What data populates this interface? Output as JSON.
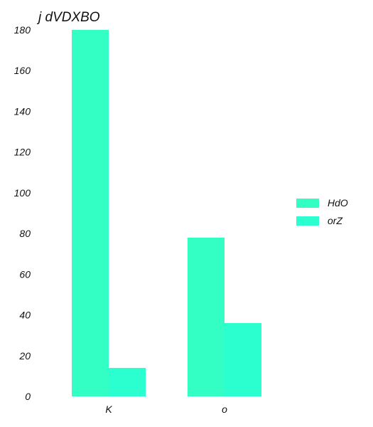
{
  "chart_data": {
    "type": "bar",
    "title": "j  dVDXBO",
    "xlabel": "",
    "ylabel": "",
    "categories": [
      "K",
      "o"
    ],
    "series": [
      {
        "name": "HdO",
        "values": [
          180,
          78
        ],
        "color": "#33ffc4"
      },
      {
        "name": "orZ",
        "values": [
          14,
          36
        ],
        "color": "#2bffcf"
      }
    ],
    "ylim": [
      0,
      180
    ],
    "yticks": [
      0,
      20,
      40,
      60,
      80,
      100,
      120,
      140,
      160,
      180
    ],
    "grid": false,
    "legend_position": "right"
  }
}
